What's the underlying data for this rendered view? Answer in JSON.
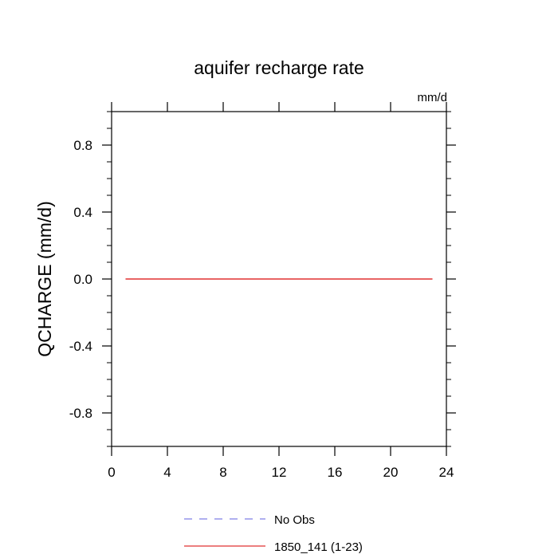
{
  "chart_data": {
    "type": "line",
    "title": "aquifer recharge rate",
    "units": "mm/d",
    "xlabel": "",
    "ylabel": "QCHARGE  (mm/d)",
    "xlim": [
      0,
      24
    ],
    "ylim": [
      -1,
      1
    ],
    "x_ticks": [
      0,
      4,
      8,
      12,
      16,
      20,
      24
    ],
    "y_ticks": [
      -0.8,
      -0.4,
      0.0,
      0.4,
      0.8
    ],
    "grid": false,
    "series": [
      {
        "name": "No Obs",
        "style": "dashed",
        "color": "#7f7fe8",
        "x": [],
        "y": []
      },
      {
        "name": "1850_141 (1-23)",
        "style": "solid",
        "color": "#e03030",
        "x": [
          1,
          23
        ],
        "y": [
          0.0,
          0.0
        ]
      }
    ],
    "legend_position": "bottom"
  }
}
